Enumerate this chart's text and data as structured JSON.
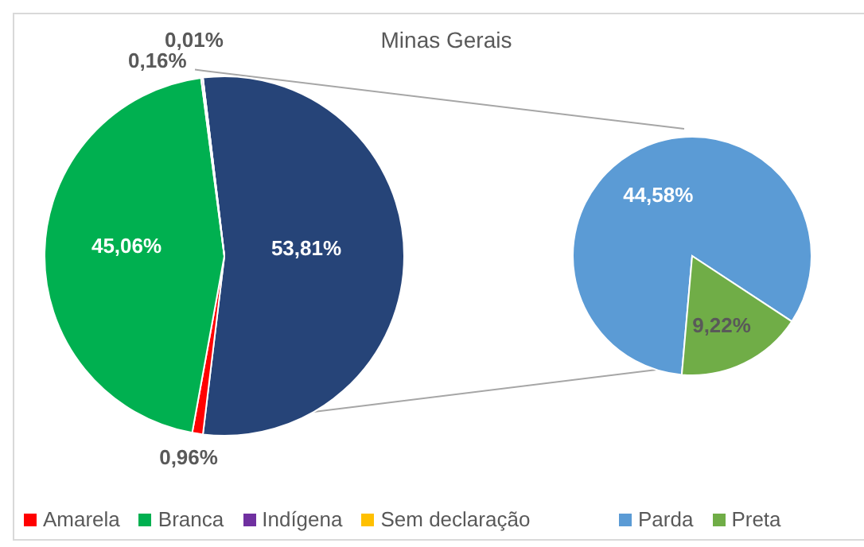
{
  "chart_data": [
    {
      "type": "pie",
      "title": "Minas Gerais",
      "categories": [
        null,
        "Amarela",
        "Branca",
        "Indígena",
        "Sem declaração"
      ],
      "values": [
        53.81,
        0.96,
        45.06,
        0.16,
        0.01
      ],
      "colors": [
        "#264478",
        "#ff0000",
        "#00b050",
        "#7030a0",
        "#ffc000"
      ],
      "value_labels": [
        "53,81%",
        "0,96%",
        "45,06%",
        "0,16%",
        "0,01%"
      ],
      "legend": "bottom"
    },
    {
      "type": "pie",
      "categories": [
        "Parda",
        "Preta"
      ],
      "values": [
        44.58,
        9.22
      ],
      "colors": [
        "#5b9bd5",
        "#70ad47"
      ],
      "value_labels": [
        "44,58%",
        "9,22%"
      ],
      "legend": "bottom"
    }
  ]
}
